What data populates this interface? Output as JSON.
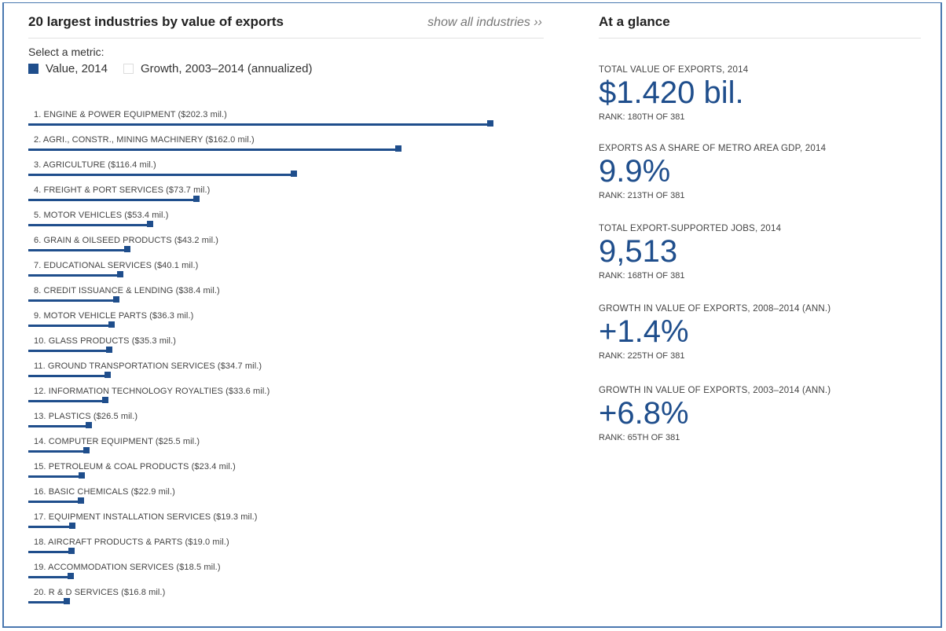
{
  "left": {
    "title": "20 largest industries by value of exports",
    "show_all": "show all industries ››",
    "metric_prompt": "Select a metric:",
    "metric_value": "Value, 2014",
    "metric_growth": "Growth, 2003–2014 (annualized)"
  },
  "chart_data": {
    "type": "bar",
    "categories": [
      "1. ENGINE & POWER EQUIPMENT ($202.3 mil.)",
      "2. AGRI., CONSTR., MINING MACHINERY ($162.0 mil.)",
      "3. AGRICULTURE ($116.4 mil.)",
      "4. FREIGHT & PORT SERVICES ($73.7 mil.)",
      "5. MOTOR VEHICLES ($53.4 mil.)",
      "6. GRAIN & OILSEED PRODUCTS ($43.2 mil.)",
      "7. EDUCATIONAL SERVICES ($40.1 mil.)",
      "8. CREDIT ISSUANCE & LENDING ($38.4 mil.)",
      "9. MOTOR VEHICLE PARTS ($36.3 mil.)",
      "10. GLASS PRODUCTS ($35.3 mil.)",
      "11. GROUND TRANSPORTATION SERVICES ($34.7 mil.)",
      "12. INFORMATION TECHNOLOGY ROYALTIES ($33.6 mil.)",
      "13. PLASTICS ($26.5 mil.)",
      "14. COMPUTER EQUIPMENT ($25.5 mil.)",
      "15. PETROLEUM & COAL PRODUCTS ($23.4 mil.)",
      "16. BASIC CHEMICALS ($22.9 mil.)",
      "17. EQUIPMENT INSTALLATION SERVICES ($19.3 mil.)",
      "18. AIRCRAFT PRODUCTS & PARTS ($19.0 mil.)",
      "19. ACCOMMODATION SERVICES ($18.5 mil.)",
      "20. R & D SERVICES ($16.8 mil.)"
    ],
    "values": [
      202.3,
      162.0,
      116.4,
      73.7,
      53.4,
      43.2,
      40.1,
      38.4,
      36.3,
      35.3,
      34.7,
      33.6,
      26.5,
      25.5,
      23.4,
      22.9,
      19.3,
      19.0,
      18.5,
      16.8
    ],
    "ylim": [
      0,
      202.3
    ],
    "accent": "#1f4e8c"
  },
  "right": {
    "title": "At a glance",
    "stats": [
      {
        "label": "TOTAL VALUE OF EXPORTS, 2014",
        "value": "$1.420 bil.",
        "rank": "RANK: 180TH OF 381"
      },
      {
        "label": "EXPORTS AS A SHARE OF METRO AREA GDP, 2014",
        "value": "9.9%",
        "rank": "RANK: 213TH OF 381"
      },
      {
        "label": "TOTAL EXPORT-SUPPORTED JOBS, 2014",
        "value": "9,513",
        "rank": "RANK: 168TH OF 381"
      },
      {
        "label": "GROWTH IN VALUE OF EXPORTS, 2008–2014 (ANN.)",
        "value": "+1.4%",
        "rank": "RANK: 225TH OF 381"
      },
      {
        "label": "GROWTH IN VALUE OF EXPORTS, 2003–2014 (ANN.)",
        "value": "+6.8%",
        "rank": "RANK: 65TH OF 381"
      }
    ]
  }
}
